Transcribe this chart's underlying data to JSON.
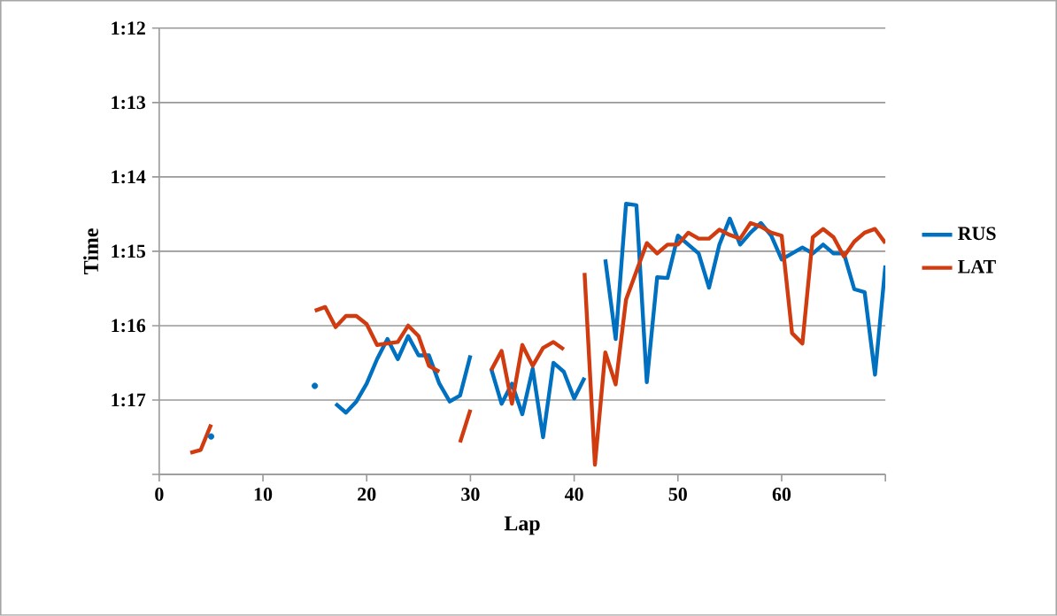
{
  "chart_data": {
    "type": "line",
    "xlabel": "Lap",
    "ylabel": "Time",
    "x": [
      3,
      4,
      5,
      6,
      7,
      8,
      9,
      10,
      11,
      12,
      13,
      14,
      15,
      16,
      17,
      18,
      19,
      20,
      21,
      22,
      23,
      24,
      25,
      26,
      27,
      28,
      29,
      30,
      31,
      32,
      33,
      34,
      35,
      36,
      37,
      38,
      39,
      40,
      41,
      42,
      43,
      44,
      45,
      46,
      47,
      48,
      49,
      50,
      51,
      52,
      53,
      54,
      55,
      56,
      57,
      58,
      59,
      60,
      61,
      62,
      63,
      64,
      65,
      66,
      67,
      68,
      69,
      70
    ],
    "series": [
      {
        "name": "RUS",
        "color": "#0070c0",
        "values": [
          null,
          null,
          77.49,
          null,
          null,
          null,
          null,
          null,
          null,
          null,
          null,
          null,
          76.81,
          null,
          77.05,
          77.17,
          77.02,
          76.78,
          76.45,
          76.18,
          76.45,
          76.14,
          76.4,
          76.4,
          76.78,
          77.02,
          76.94,
          76.4,
          null,
          76.58,
          77.05,
          76.78,
          77.19,
          76.58,
          77.5,
          76.5,
          76.62,
          76.98,
          76.7,
          null,
          75.11,
          76.18,
          74.36,
          74.38,
          76.76,
          75.35,
          75.36,
          74.79,
          74.91,
          75.03,
          75.49,
          74.91,
          74.56,
          74.91,
          74.75,
          74.62,
          74.79,
          75.11,
          75.03,
          74.95,
          75.03,
          74.91,
          75.03,
          75.03,
          75.51,
          75.55,
          76.66,
          75.19
        ]
      },
      {
        "name": "LAT",
        "color": "#d03c10",
        "values": [
          77.71,
          77.67,
          77.33,
          null,
          null,
          null,
          null,
          null,
          null,
          null,
          null,
          null,
          75.8,
          75.75,
          76.02,
          75.87,
          75.87,
          75.98,
          76.26,
          76.24,
          76.22,
          76.0,
          76.14,
          76.54,
          76.62,
          null,
          77.57,
          77.13,
          null,
          76.6,
          76.34,
          77.05,
          76.26,
          76.54,
          76.3,
          76.22,
          76.32,
          null,
          75.29,
          77.87,
          76.36,
          76.79,
          75.65,
          75.27,
          74.89,
          75.03,
          74.91,
          74.91,
          74.75,
          74.83,
          74.83,
          74.71,
          74.78,
          74.83,
          74.62,
          74.67,
          74.75,
          74.79,
          76.1,
          76.24,
          74.81,
          74.7,
          74.81,
          75.07,
          74.87,
          74.75,
          74.7,
          74.89
        ]
      }
    ],
    "xlim": [
      0,
      70
    ],
    "xticks": [
      0,
      10,
      20,
      30,
      40,
      50,
      60,
      {
        "value": 70,
        "label": null
      }
    ],
    "ylim": [
      78,
      72
    ],
    "yticks": [
      {
        "value": 72,
        "label": "1:12"
      },
      {
        "value": 73,
        "label": "1:13"
      },
      {
        "value": 74,
        "label": "1:14"
      },
      {
        "value": 75,
        "label": "1:15"
      },
      {
        "value": 76,
        "label": "1:16"
      },
      {
        "value": 77,
        "label": "1:17"
      },
      {
        "value": 78,
        "label": null
      }
    ],
    "grid": "y",
    "legend": "right",
    "line_style": "solid",
    "marker": "none"
  }
}
